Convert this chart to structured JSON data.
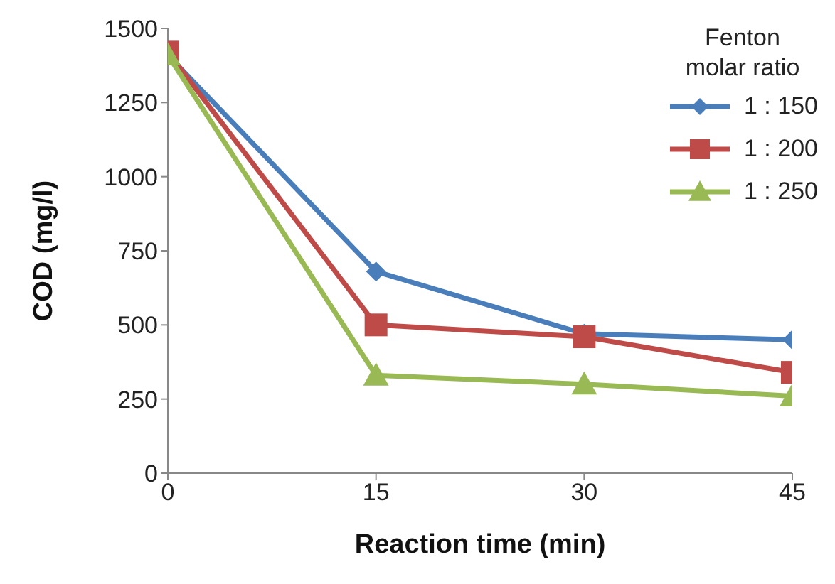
{
  "chart_data": {
    "type": "line",
    "xlabel": "Reaction time (min)",
    "ylabel": "COD (mg/l)",
    "legend_title": "Fenton molar ratio",
    "x": [
      0,
      15,
      30,
      45
    ],
    "xlim": [
      0,
      45
    ],
    "xticks": [
      0,
      15,
      30,
      45
    ],
    "ylim": [
      0,
      1500
    ],
    "yticks": [
      0,
      250,
      500,
      750,
      1000,
      1250,
      1500
    ],
    "grid": false,
    "legend": "top right",
    "series": [
      {
        "name": "1 : 150",
        "color": "#4a7ebb",
        "marker": "diamond",
        "values": [
          1410,
          680,
          470,
          450
        ]
      },
      {
        "name": "1 : 200",
        "color": "#be4b48",
        "marker": "square",
        "values": [
          1420,
          500,
          460,
          340
        ]
      },
      {
        "name": "1 : 250",
        "color": "#98b954",
        "marker": "triangle",
        "values": [
          1410,
          330,
          300,
          260
        ]
      }
    ]
  }
}
